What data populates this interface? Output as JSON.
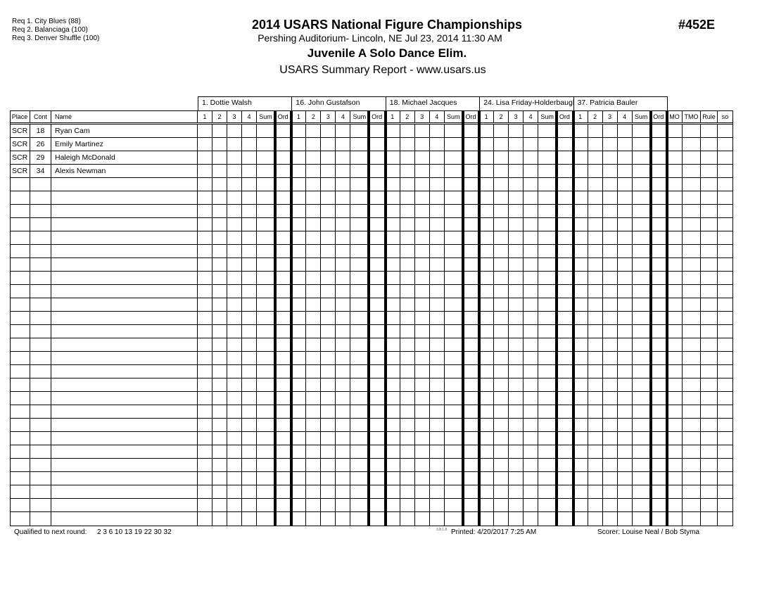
{
  "requirements": [
    "Req  1.  City Blues (88)",
    "Req  2.  Balanciaga (100)",
    "Req  3.  Denver Shuffle (100)"
  ],
  "header": {
    "title": "2014 USARS National Figure Championships",
    "event_number": "#452E",
    "venue": "Pershing Auditorium- Lincoln, NE  Jul 23, 2014  11:30 AM",
    "event": "Juvenile A Solo Dance Elim.",
    "report": "USARS Summary Report - www.usars.us"
  },
  "judges": [
    "1.  Dottie Walsh",
    "16.  John Gustafson",
    "18.  Michael Jacques",
    "24.  Lisa Friday-Holderbaugh",
    "37.  Patricia Bauler"
  ],
  "columns": {
    "left": [
      "Place",
      "Cont",
      "Name"
    ],
    "judge": [
      "1",
      "2",
      "3",
      "4",
      "Sum",
      "Ord"
    ],
    "right": [
      "MO",
      "TMO",
      "Rule",
      "so"
    ]
  },
  "rows": [
    {
      "place": "SCR",
      "cont": "18",
      "name": "Ryan Cam"
    },
    {
      "place": "SCR",
      "cont": "26",
      "name": "Emily Martinez"
    },
    {
      "place": "SCR",
      "cont": "29",
      "name": "Haleigh McDonald"
    },
    {
      "place": "SCR",
      "cont": "34",
      "name": "Alexis Newman"
    }
  ],
  "footer": {
    "qualified_label": "Qualified to next round:",
    "qualified_values": "2 3 6 10 13 19 22 30 32",
    "version": "3.8.1.8",
    "printed": "Printed:  4/20/2017  7:25 AM",
    "scorer": "Scorer:   Louise Neal / Bob Styma"
  }
}
